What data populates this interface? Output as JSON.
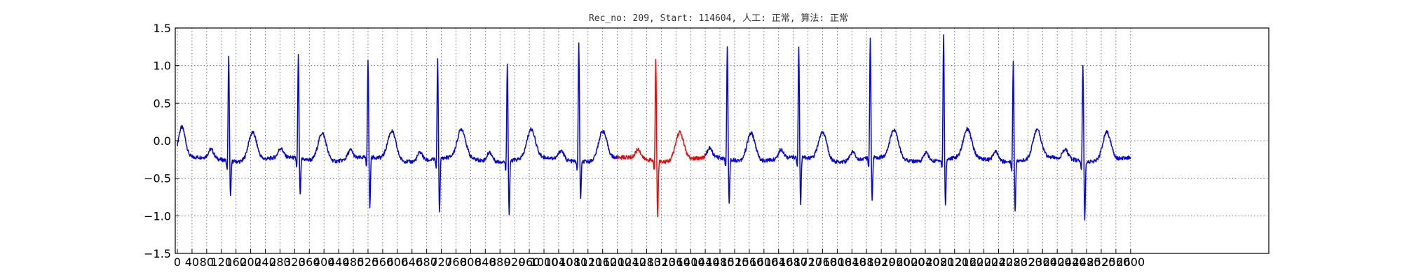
{
  "chart_data": {
    "type": "line",
    "title": "Rec_no: 209, Start: 114604, 人工: 正常, 算法: 正常",
    "xlabel": "",
    "ylabel": "",
    "xlim": [
      0,
      3000
    ],
    "ylim": [
      -1.5,
      1.5
    ],
    "grid": true,
    "y_ticks": [
      "1.5",
      "1.0",
      "0.5",
      "0.0",
      "−0.5",
      "−1.0",
      "−1.5"
    ],
    "x_ticks": [
      "0",
      "40",
      "80",
      "120",
      "160",
      "200",
      "240",
      "280",
      "320",
      "360",
      "400",
      "440",
      "480",
      "520",
      "560",
      "600",
      "640",
      "680",
      "720",
      "760",
      "800",
      "840",
      "880",
      "920",
      "960",
      "1000",
      "1040",
      "1080",
      "1120",
      "1160",
      "1200",
      "1240",
      "1280",
      "1320",
      "1360",
      "1400",
      "1440",
      "1480",
      "1520",
      "1560",
      "1600",
      "1640",
      "1680",
      "1720",
      "1760",
      "1800",
      "1840",
      "1880",
      "1920",
      "1960",
      "2000",
      "2040",
      "2080",
      "2120",
      "2160",
      "2200",
      "2240",
      "2280",
      "2320",
      "2360",
      "2400",
      "2440",
      "2480",
      "2520",
      "2560",
      "2600"
    ],
    "series_colors": {
      "normal": "#0000ff",
      "highlight": "#ff0000"
    },
    "highlight_range": [
      1200,
      1440
    ],
    "beats": [
      {
        "r": 140,
        "peak": 1.15,
        "trough": -0.78
      },
      {
        "r": 330,
        "peak": 1.12,
        "trough": -0.8
      },
      {
        "r": 520,
        "peak": 1.05,
        "trough": -0.97
      },
      {
        "r": 710,
        "peak": 1.07,
        "trough": -1.02
      },
      {
        "r": 900,
        "peak": 1.06,
        "trough": -1.02
      },
      {
        "r": 1095,
        "peak": 1.32,
        "trough": -0.8
      },
      {
        "r": 1305,
        "peak": 1.1,
        "trough": -1.03
      },
      {
        "r": 1500,
        "peak": 1.25,
        "trough": -0.9
      },
      {
        "r": 1695,
        "peak": 1.22,
        "trough": -0.95
      },
      {
        "r": 1890,
        "peak": 1.35,
        "trough": -0.87
      },
      {
        "r": 2090,
        "peak": 1.42,
        "trough": -0.93
      },
      {
        "r": 2280,
        "peak": 1.08,
        "trough": -0.98
      },
      {
        "r": 2470,
        "peak": 1.04,
        "trough": -1.07
      }
    ],
    "signal_end": 2600
  }
}
